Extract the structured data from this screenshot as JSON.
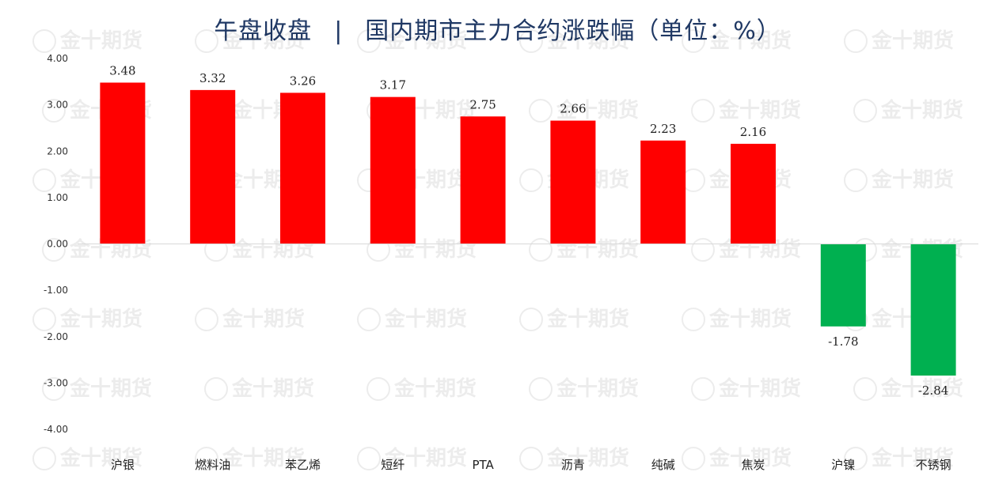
{
  "header": {
    "title_left": "午盘收盘",
    "separator": "|",
    "title_right": "国内期市主力合约涨跌幅（单位：%）"
  },
  "watermark": "金十期货",
  "chart_data": {
    "type": "bar",
    "title": "午盘收盘 | 国内期市主力合约涨跌幅（单位：%）",
    "categories": [
      "沪银",
      "燃料油",
      "苯乙烯",
      "短纤",
      "PTA",
      "沥青",
      "纯碱",
      "焦炭",
      "沪镍",
      "不锈钢"
    ],
    "values": [
      3.48,
      3.32,
      3.26,
      3.17,
      2.75,
      2.66,
      2.23,
      2.16,
      -1.78,
      -2.84
    ],
    "value_labels": [
      "3.48",
      "3.32",
      "3.26",
      "3.17",
      "2.75",
      "2.66",
      "2.23",
      "2.16",
      "-1.78",
      "-2.84"
    ],
    "ylim": [
      -4,
      4
    ],
    "yticks": [
      4,
      3,
      2,
      1,
      0,
      -1,
      -2,
      -3,
      -4
    ],
    "ytick_labels": [
      "4.00",
      "3.00",
      "2.00",
      "1.00",
      "0.00",
      "-1.00",
      "-2.00",
      "-3.00",
      "-4.00"
    ],
    "xlabel": "",
    "ylabel": "",
    "grid": false,
    "legend": "none",
    "colors": {
      "positive": "#ff0000",
      "negative": "#00b050",
      "axis": "#d9d9d9"
    }
  }
}
